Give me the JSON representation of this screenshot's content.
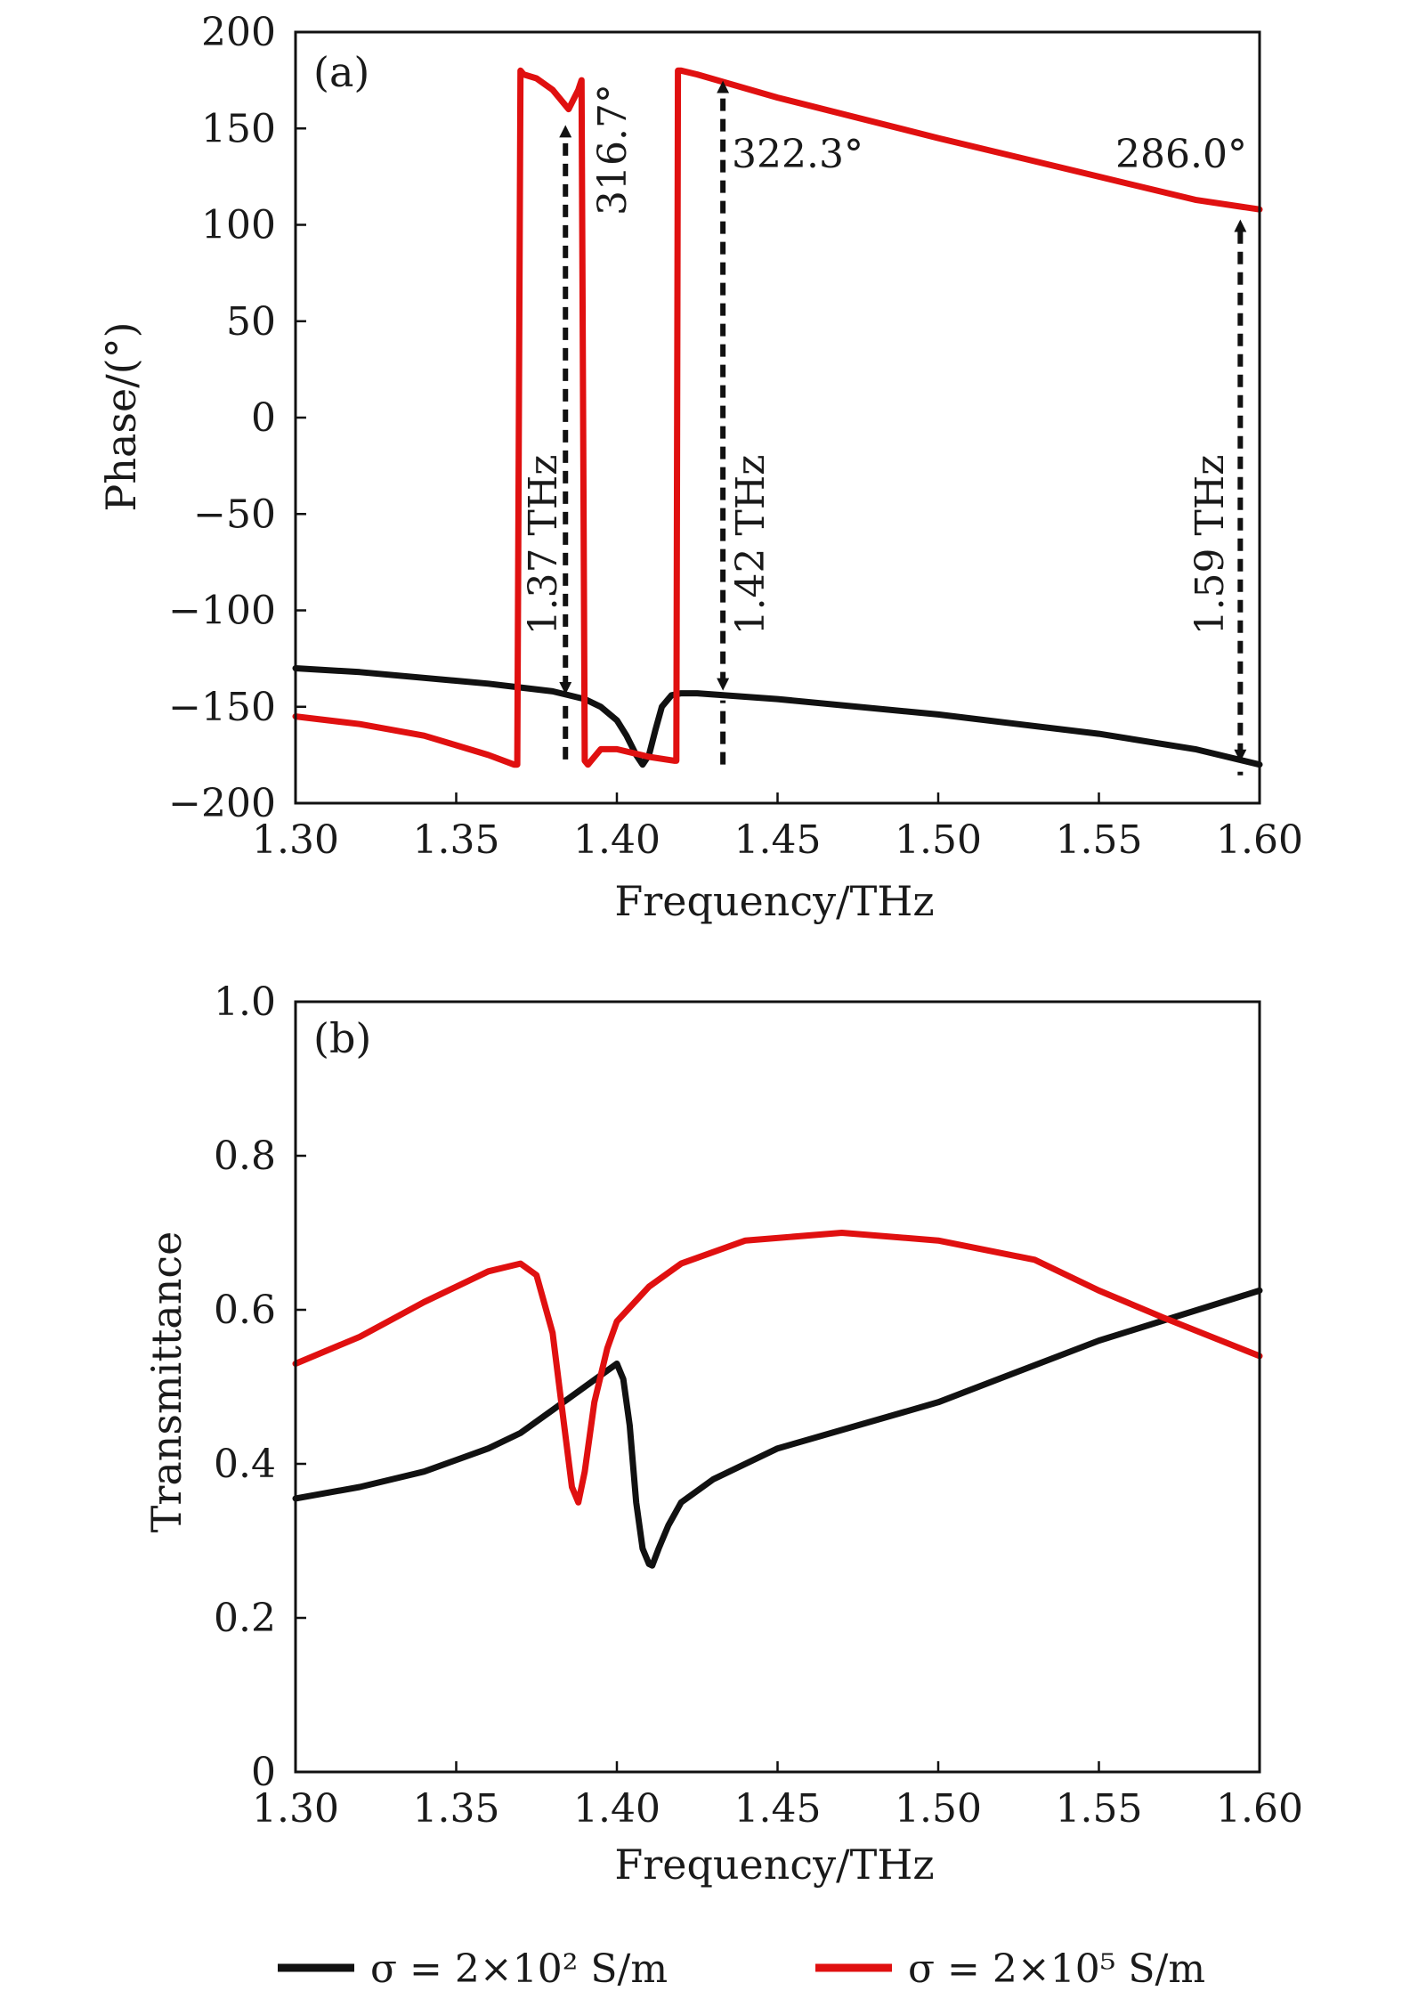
{
  "colors": {
    "black_series": "#111111",
    "red_series": "#e01010",
    "axis": "#111111"
  },
  "chart_data": [
    {
      "panel": "(a)",
      "type": "line",
      "xlabel": "Frequency/THz",
      "ylabel": "Phase/(°)",
      "xlim": [
        1.3,
        1.6
      ],
      "ylim": [
        -200,
        200
      ],
      "xticks": [
        "1.30",
        "1.35",
        "1.40",
        "1.45",
        "1.50",
        "1.55",
        "1.60"
      ],
      "yticks": [
        "200",
        "150",
        "100",
        "50",
        "0",
        "−50",
        "−100",
        "−150",
        "−200"
      ],
      "series": [
        {
          "name": "σ = 2×10² S/m",
          "color": "#111111",
          "x": [
            1.3,
            1.32,
            1.34,
            1.36,
            1.37,
            1.38,
            1.39,
            1.395,
            1.4,
            1.403,
            1.406,
            1.408,
            1.41,
            1.412,
            1.414,
            1.417,
            1.42,
            1.425,
            1.45,
            1.5,
            1.55,
            1.58,
            1.6
          ],
          "y": [
            -130,
            -132,
            -135,
            -138,
            -140,
            -142,
            -146,
            -150,
            -157,
            -165,
            -175,
            -180,
            -175,
            -162,
            -150,
            -144,
            -143,
            -143,
            -146,
            -154,
            -164,
            -172,
            -180
          ]
        },
        {
          "name": "σ = 2×10⁵ S/m",
          "color": "#e01010",
          "x": [
            1.3,
            1.32,
            1.34,
            1.35,
            1.36,
            1.368,
            1.369,
            1.37,
            1.371,
            1.375,
            1.38,
            1.385,
            1.388,
            1.389,
            1.39,
            1.391,
            1.392,
            1.395,
            1.4,
            1.41,
            1.418,
            1.4185,
            1.419,
            1.42,
            1.425,
            1.45,
            1.5,
            1.55,
            1.58,
            1.6
          ],
          "y": [
            -155,
            -159,
            -165,
            -170,
            -175,
            -180,
            -180,
            180,
            178,
            176,
            170,
            160,
            170,
            175,
            -178,
            -180,
            -178,
            -172,
            -172,
            -176,
            -178,
            -178,
            180,
            180,
            178,
            166,
            145,
            125,
            113,
            108
          ]
        }
      ],
      "annotations": [
        {
          "text": "1.37 THz",
          "x": 1.384,
          "y_from": -145,
          "y_to": 155
        },
        {
          "text": "1.42 THz",
          "x": 1.433,
          "y_from": -143,
          "y_to": 178
        },
        {
          "text": "1.59 THz",
          "x": 1.594,
          "y_from": -180,
          "y_to": 106
        }
      ],
      "phase_labels": [
        "316.7°",
        "322.3°",
        "286.0°"
      ]
    },
    {
      "panel": "(b)",
      "type": "line",
      "xlabel": "Frequency/THz",
      "ylabel": "Transmittance",
      "xlim": [
        1.3,
        1.6
      ],
      "ylim": [
        0,
        1.0
      ],
      "xticks": [
        "1.30",
        "1.35",
        "1.40",
        "1.45",
        "1.50",
        "1.55",
        "1.60"
      ],
      "yticks": [
        "1.0",
        "0.8",
        "0.6",
        "0.4",
        "0.2",
        "0"
      ],
      "series": [
        {
          "name": "σ = 2×10² S/m",
          "color": "#111111",
          "x": [
            1.3,
            1.32,
            1.34,
            1.36,
            1.37,
            1.38,
            1.39,
            1.395,
            1.4,
            1.402,
            1.404,
            1.406,
            1.408,
            1.41,
            1.411,
            1.413,
            1.416,
            1.42,
            1.43,
            1.45,
            1.5,
            1.55,
            1.6
          ],
          "y": [
            0.355,
            0.37,
            0.39,
            0.42,
            0.44,
            0.47,
            0.5,
            0.515,
            0.53,
            0.51,
            0.45,
            0.35,
            0.29,
            0.27,
            0.268,
            0.29,
            0.32,
            0.35,
            0.38,
            0.42,
            0.48,
            0.56,
            0.625
          ]
        },
        {
          "name": "σ = 2×10⁵ S/m",
          "color": "#e01010",
          "x": [
            1.3,
            1.32,
            1.34,
            1.36,
            1.37,
            1.375,
            1.38,
            1.383,
            1.386,
            1.388,
            1.39,
            1.393,
            1.397,
            1.4,
            1.41,
            1.42,
            1.44,
            1.47,
            1.5,
            1.53,
            1.55,
            1.57,
            1.6
          ],
          "y": [
            0.53,
            0.565,
            0.61,
            0.65,
            0.66,
            0.645,
            0.57,
            0.47,
            0.37,
            0.35,
            0.39,
            0.48,
            0.55,
            0.585,
            0.63,
            0.66,
            0.69,
            0.7,
            0.69,
            0.665,
            0.625,
            0.59,
            0.54
          ]
        }
      ]
    }
  ],
  "legend": [
    {
      "label": "σ = 2×10² S/m",
      "color": "#111111"
    },
    {
      "label": "σ = 2×10⁵ S/m",
      "color": "#e01010"
    }
  ]
}
